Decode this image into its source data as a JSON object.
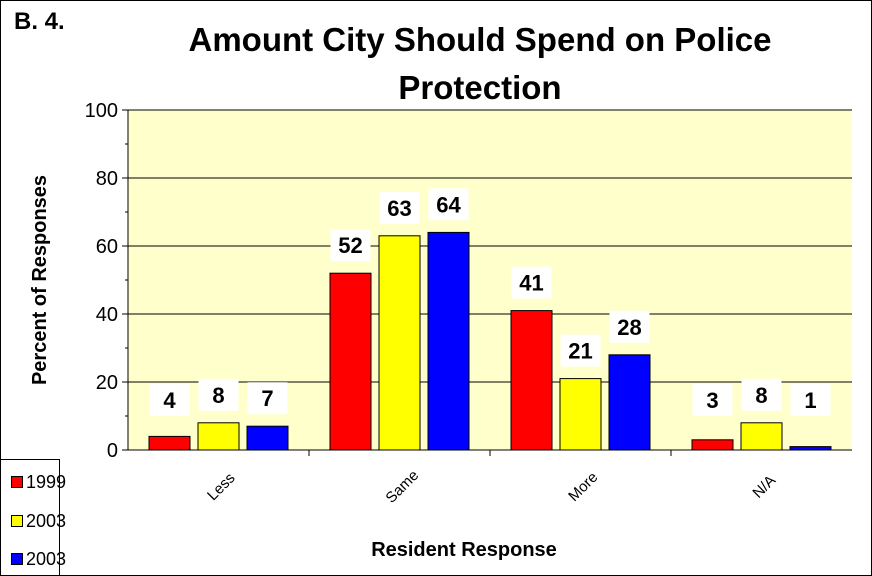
{
  "figure_label": "B. 4.",
  "chart_data": {
    "type": "bar",
    "title": "Amount City Should Spend on Police Protection",
    "xlabel": "Resident Response",
    "ylabel": "Percent of Responses",
    "categories": [
      "Less",
      "Same",
      "More",
      "N/A"
    ],
    "ylim": [
      0,
      100
    ],
    "yticks": [
      "0",
      "20",
      "40",
      "60",
      "80",
      "100"
    ],
    "grid": true,
    "legend_position": "bottom-left",
    "series": [
      {
        "name": "1999",
        "color": "#ff0000",
        "values": [
          4,
          52,
          41,
          3
        ]
      },
      {
        "name": "2003",
        "color": "#ffff00",
        "values": [
          8,
          63,
          21,
          8
        ]
      },
      {
        "name": "2003",
        "color": "#0000ff",
        "values": [
          7,
          64,
          28,
          1
        ]
      }
    ],
    "plot_background": "#ffffcc"
  }
}
